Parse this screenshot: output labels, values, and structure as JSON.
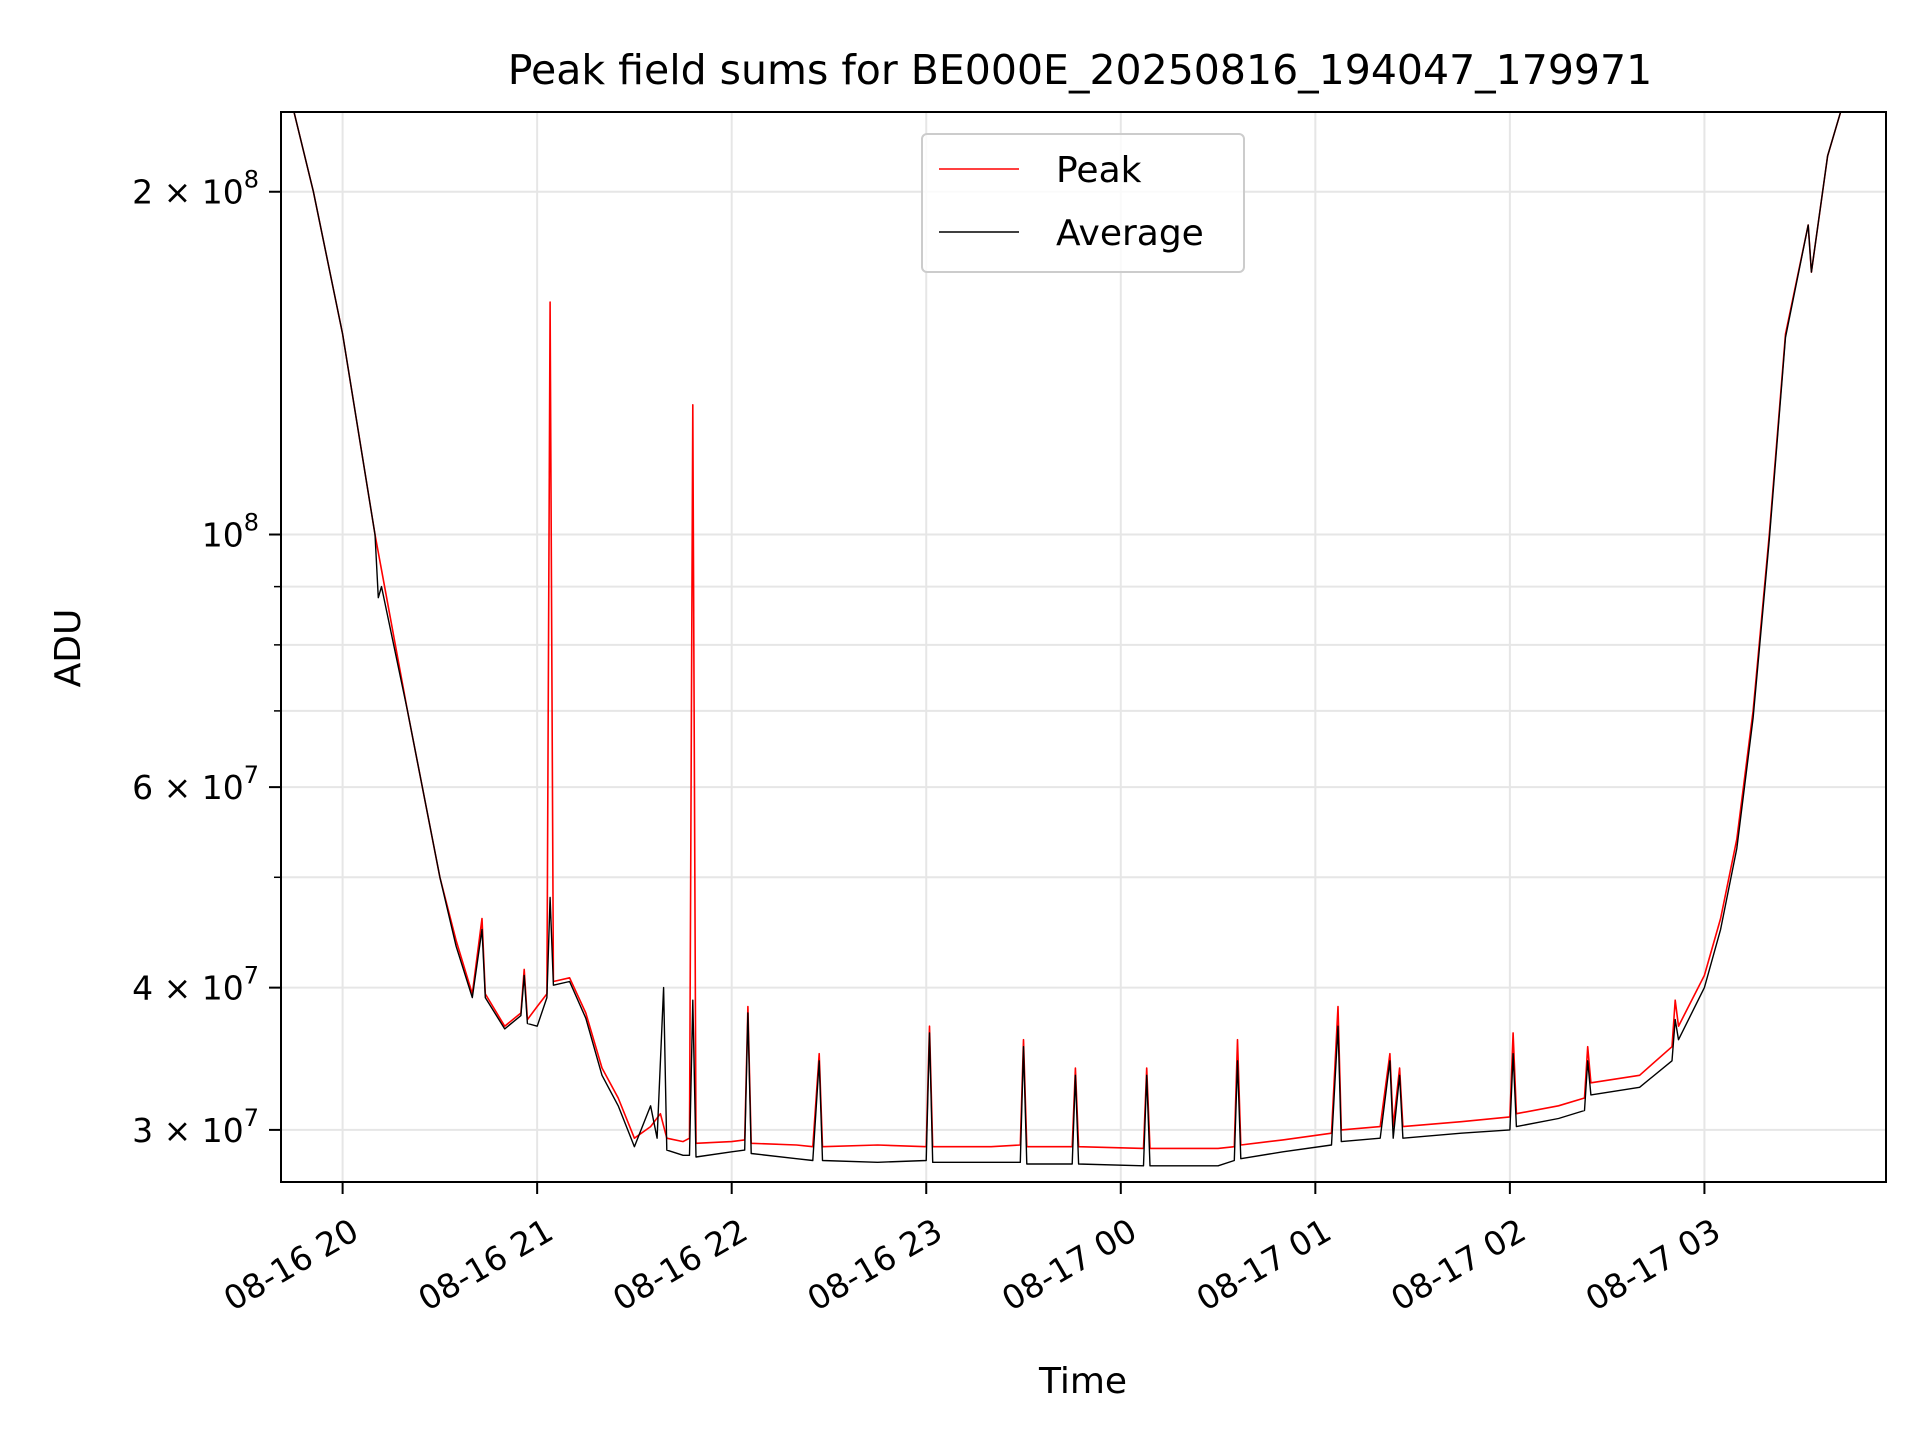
{
  "chart_data": {
    "type": "line",
    "title": "Peak field sums for BE000E_20250816_194047_179971",
    "xlabel": "Time",
    "ylabel": "ADU",
    "yscale": "log",
    "ylim": [
      27000000,
      235000000
    ],
    "xlim": [
      "2025-08-16 19:41",
      "2025-08-17 03:56"
    ],
    "grid": true,
    "legend_position": "top-center",
    "x_ticks": [
      {
        "t": "2025-08-16 20:00",
        "label": "08-16 20"
      },
      {
        "t": "2025-08-16 21:00",
        "label": "08-16 21"
      },
      {
        "t": "2025-08-16 22:00",
        "label": "08-16 22"
      },
      {
        "t": "2025-08-16 23:00",
        "label": "08-16 23"
      },
      {
        "t": "2025-08-17 00:00",
        "label": "08-17 00"
      },
      {
        "t": "2025-08-17 01:00",
        "label": "08-17 01"
      },
      {
        "t": "2025-08-17 02:00",
        "label": "08-17 02"
      },
      {
        "t": "2025-08-17 03:00",
        "label": "08-17 03"
      }
    ],
    "y_major_ticks": [
      {
        "v": 30000000,
        "mant": "3",
        "exp": "7"
      },
      {
        "v": 40000000,
        "mant": "4",
        "exp": "7"
      },
      {
        "v": 60000000,
        "mant": "6",
        "exp": "7"
      },
      {
        "v": 100000000,
        "mant": "",
        "exp": "8"
      },
      {
        "v": 200000000,
        "mant": "2",
        "exp": "8"
      }
    ],
    "y_minor_ticks": [
      50000000,
      70000000,
      80000000,
      90000000
    ],
    "series": [
      {
        "name": "Peak",
        "color": "#ff0000",
        "points": [
          [
            "2025-08-16 19:41",
            235000000
          ],
          [
            "2025-08-16 19:45",
            235000000
          ],
          [
            "2025-08-16 19:51",
            200000000
          ],
          [
            "2025-08-16 20:00",
            150000000
          ],
          [
            "2025-08-16 20:10",
            100000000
          ],
          [
            "2025-08-16 20:20",
            70000000
          ],
          [
            "2025-08-16 20:30",
            50000000
          ],
          [
            "2025-08-16 20:35",
            44000000
          ],
          [
            "2025-08-16 20:40",
            39500000
          ],
          [
            "2025-08-16 20:43",
            46000000
          ],
          [
            "2025-08-16 20:44",
            39500000
          ],
          [
            "2025-08-16 20:50",
            37000000
          ],
          [
            "2025-08-16 20:55",
            38000000
          ],
          [
            "2025-08-16 20:56",
            41500000
          ],
          [
            "2025-08-16 20:57",
            37500000
          ],
          [
            "2025-08-16 21:00",
            38500000
          ],
          [
            "2025-08-16 21:03",
            39500000
          ],
          [
            "2025-08-16 21:04",
            160000000
          ],
          [
            "2025-08-16 21:05",
            40500000
          ],
          [
            "2025-08-16 21:10",
            40800000
          ],
          [
            "2025-08-16 21:15",
            38000000
          ],
          [
            "2025-08-16 21:20",
            34000000
          ],
          [
            "2025-08-16 21:25",
            32000000
          ],
          [
            "2025-08-16 21:30",
            29500000
          ],
          [
            "2025-08-16 21:35",
            30200000
          ],
          [
            "2025-08-16 21:38",
            31000000
          ],
          [
            "2025-08-16 21:40",
            29500000
          ],
          [
            "2025-08-16 21:45",
            29300000
          ],
          [
            "2025-08-16 21:47",
            29500000
          ],
          [
            "2025-08-16 21:48",
            130000000
          ],
          [
            "2025-08-16 21:49",
            29200000
          ],
          [
            "2025-08-16 22:00",
            29300000
          ],
          [
            "2025-08-16 22:04",
            29400000
          ],
          [
            "2025-08-16 22:05",
            38500000
          ],
          [
            "2025-08-16 22:06",
            29200000
          ],
          [
            "2025-08-16 22:20",
            29100000
          ],
          [
            "2025-08-16 22:25",
            29000000
          ],
          [
            "2025-08-16 22:27",
            35000000
          ],
          [
            "2025-08-16 22:28",
            29000000
          ],
          [
            "2025-08-16 22:45",
            29100000
          ],
          [
            "2025-08-16 23:00",
            29000000
          ],
          [
            "2025-08-16 23:01",
            37000000
          ],
          [
            "2025-08-16 23:02",
            29000000
          ],
          [
            "2025-08-16 23:20",
            29000000
          ],
          [
            "2025-08-16 23:29",
            29100000
          ],
          [
            "2025-08-16 23:30",
            36000000
          ],
          [
            "2025-08-16 23:31",
            29000000
          ],
          [
            "2025-08-16 23:45",
            29000000
          ],
          [
            "2025-08-16 23:46",
            34000000
          ],
          [
            "2025-08-16 23:47",
            29000000
          ],
          [
            "2025-08-17 00:07",
            28900000
          ],
          [
            "2025-08-17 00:08",
            34000000
          ],
          [
            "2025-08-17 00:09",
            28900000
          ],
          [
            "2025-08-17 00:30",
            28900000
          ],
          [
            "2025-08-17 00:35",
            29000000
          ],
          [
            "2025-08-17 00:36",
            36000000
          ],
          [
            "2025-08-17 00:37",
            29100000
          ],
          [
            "2025-08-17 00:50",
            29400000
          ],
          [
            "2025-08-17 01:05",
            29800000
          ],
          [
            "2025-08-17 01:07",
            38500000
          ],
          [
            "2025-08-17 01:08",
            30000000
          ],
          [
            "2025-08-17 01:20",
            30200000
          ],
          [
            "2025-08-17 01:23",
            35000000
          ],
          [
            "2025-08-17 01:24",
            30200000
          ],
          [
            "2025-08-17 01:26",
            34000000
          ],
          [
            "2025-08-17 01:27",
            30200000
          ],
          [
            "2025-08-17 01:45",
            30500000
          ],
          [
            "2025-08-17 02:00",
            30800000
          ],
          [
            "2025-08-17 02:01",
            36500000
          ],
          [
            "2025-08-17 02:02",
            31000000
          ],
          [
            "2025-08-17 02:15",
            31500000
          ],
          [
            "2025-08-17 02:23",
            32000000
          ],
          [
            "2025-08-17 02:24",
            35500000
          ],
          [
            "2025-08-17 02:25",
            33000000
          ],
          [
            "2025-08-17 02:40",
            33500000
          ],
          [
            "2025-08-17 02:50",
            35500000
          ],
          [
            "2025-08-17 02:51",
            39000000
          ],
          [
            "2025-08-17 02:52",
            37000000
          ],
          [
            "2025-08-17 03:00",
            41000000
          ],
          [
            "2025-08-17 03:05",
            46000000
          ],
          [
            "2025-08-17 03:10",
            54000000
          ],
          [
            "2025-08-17 03:15",
            70000000
          ],
          [
            "2025-08-17 03:20",
            100000000
          ],
          [
            "2025-08-17 03:25",
            150000000
          ],
          [
            "2025-08-17 03:32",
            187000000
          ],
          [
            "2025-08-17 03:33",
            170000000
          ],
          [
            "2025-08-17 03:38",
            215000000
          ],
          [
            "2025-08-17 03:42",
            235000000
          ],
          [
            "2025-08-17 03:56",
            235000000
          ]
        ]
      },
      {
        "name": "Average",
        "color": "#000000",
        "points": [
          [
            "2025-08-16 19:41",
            235000000
          ],
          [
            "2025-08-16 19:45",
            235000000
          ],
          [
            "2025-08-16 19:51",
            200000000
          ],
          [
            "2025-08-16 20:00",
            150000000
          ],
          [
            "2025-08-16 20:10",
            100000000
          ],
          [
            "2025-08-16 20:11",
            88000000
          ],
          [
            "2025-08-16 20:12",
            90000000
          ],
          [
            "2025-08-16 20:20",
            70000000
          ],
          [
            "2025-08-16 20:30",
            50000000
          ],
          [
            "2025-08-16 20:35",
            43500000
          ],
          [
            "2025-08-16 20:40",
            39200000
          ],
          [
            "2025-08-16 20:43",
            45000000
          ],
          [
            "2025-08-16 20:44",
            39200000
          ],
          [
            "2025-08-16 20:50",
            36800000
          ],
          [
            "2025-08-16 20:55",
            37800000
          ],
          [
            "2025-08-16 20:56",
            41000000
          ],
          [
            "2025-08-16 20:57",
            37200000
          ],
          [
            "2025-08-16 21:00",
            37000000
          ],
          [
            "2025-08-16 21:03",
            39200000
          ],
          [
            "2025-08-16 21:04",
            48000000
          ],
          [
            "2025-08-16 21:05",
            40200000
          ],
          [
            "2025-08-16 21:10",
            40500000
          ],
          [
            "2025-08-16 21:15",
            37600000
          ],
          [
            "2025-08-16 21:20",
            33500000
          ],
          [
            "2025-08-16 21:25",
            31500000
          ],
          [
            "2025-08-16 21:30",
            29000000
          ],
          [
            "2025-08-16 21:35",
            31500000
          ],
          [
            "2025-08-16 21:37",
            29500000
          ],
          [
            "2025-08-16 21:39",
            40000000
          ],
          [
            "2025-08-16 21:40",
            28800000
          ],
          [
            "2025-08-16 21:45",
            28500000
          ],
          [
            "2025-08-16 21:47",
            28500000
          ],
          [
            "2025-08-16 21:48",
            39000000
          ],
          [
            "2025-08-16 21:49",
            28400000
          ],
          [
            "2025-08-16 22:00",
            28700000
          ],
          [
            "2025-08-16 22:04",
            28800000
          ],
          [
            "2025-08-16 22:05",
            38000000
          ],
          [
            "2025-08-16 22:06",
            28600000
          ],
          [
            "2025-08-16 22:20",
            28300000
          ],
          [
            "2025-08-16 22:25",
            28200000
          ],
          [
            "2025-08-16 22:27",
            34500000
          ],
          [
            "2025-08-16 22:28",
            28200000
          ],
          [
            "2025-08-16 22:45",
            28100000
          ],
          [
            "2025-08-16 23:00",
            28200000
          ],
          [
            "2025-08-16 23:01",
            36500000
          ],
          [
            "2025-08-16 23:02",
            28100000
          ],
          [
            "2025-08-16 23:20",
            28100000
          ],
          [
            "2025-08-16 23:29",
            28100000
          ],
          [
            "2025-08-16 23:30",
            35500000
          ],
          [
            "2025-08-16 23:31",
            28000000
          ],
          [
            "2025-08-16 23:45",
            28000000
          ],
          [
            "2025-08-16 23:46",
            33500000
          ],
          [
            "2025-08-16 23:47",
            28000000
          ],
          [
            "2025-08-17 00:07",
            27900000
          ],
          [
            "2025-08-17 00:08",
            33500000
          ],
          [
            "2025-08-17 00:09",
            27900000
          ],
          [
            "2025-08-17 00:30",
            27900000
          ],
          [
            "2025-08-17 00:35",
            28200000
          ],
          [
            "2025-08-17 00:36",
            34500000
          ],
          [
            "2025-08-17 00:37",
            28300000
          ],
          [
            "2025-08-17 00:50",
            28700000
          ],
          [
            "2025-08-17 01:05",
            29100000
          ],
          [
            "2025-08-17 01:07",
            37000000
          ],
          [
            "2025-08-17 01:08",
            29300000
          ],
          [
            "2025-08-17 01:20",
            29500000
          ],
          [
            "2025-08-17 01:23",
            34500000
          ],
          [
            "2025-08-17 01:24",
            29500000
          ],
          [
            "2025-08-17 01:26",
            33500000
          ],
          [
            "2025-08-17 01:27",
            29500000
          ],
          [
            "2025-08-17 01:45",
            29800000
          ],
          [
            "2025-08-17 02:00",
            30000000
          ],
          [
            "2025-08-17 02:01",
            35000000
          ],
          [
            "2025-08-17 02:02",
            30200000
          ],
          [
            "2025-08-17 02:15",
            30700000
          ],
          [
            "2025-08-17 02:23",
            31200000
          ],
          [
            "2025-08-17 02:24",
            34500000
          ],
          [
            "2025-08-17 02:25",
            32200000
          ],
          [
            "2025-08-17 02:40",
            32700000
          ],
          [
            "2025-08-17 02:50",
            34500000
          ],
          [
            "2025-08-17 02:51",
            37500000
          ],
          [
            "2025-08-17 02:52",
            36000000
          ],
          [
            "2025-08-17 03:00",
            40000000
          ],
          [
            "2025-08-17 03:05",
            45000000
          ],
          [
            "2025-08-17 03:10",
            53000000
          ],
          [
            "2025-08-17 03:15",
            69000000
          ],
          [
            "2025-08-17 03:20",
            99000000
          ],
          [
            "2025-08-17 03:25",
            149000000
          ],
          [
            "2025-08-17 03:32",
            187000000
          ],
          [
            "2025-08-17 03:33",
            170000000
          ],
          [
            "2025-08-17 03:38",
            215000000
          ],
          [
            "2025-08-17 03:42",
            235000000
          ],
          [
            "2025-08-17 03:56",
            235000000
          ]
        ]
      }
    ]
  }
}
